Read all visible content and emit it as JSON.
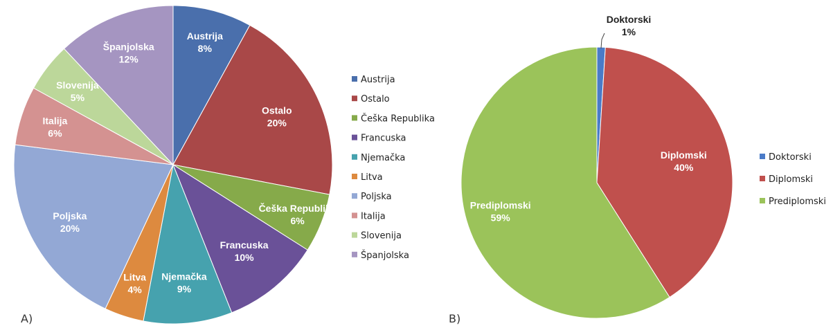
{
  "chart_data": [
    {
      "type": "pie",
      "panel_label": "A)",
      "legend_position": "right",
      "slices": [
        {
          "label": "Austrija",
          "value": 8,
          "value_label": "8%",
          "color": "#4a6fac"
        },
        {
          "label": "Ostalo",
          "value": 20,
          "value_label": "20%",
          "color": "#a94848"
        },
        {
          "label": "Češka Republika",
          "value": 6,
          "value_label": "6%",
          "color": "#86aa4a"
        },
        {
          "label": "Francuska",
          "value": 10,
          "value_label": "10%",
          "color": "#6a5198"
        },
        {
          "label": "Njemačka",
          "value": 9,
          "value_label": "9%",
          "color": "#46a2ae"
        },
        {
          "label": "Litva",
          "value": 4,
          "value_label": "4%",
          "color": "#dd8a3f"
        },
        {
          "label": "Poljska",
          "value": 20,
          "value_label": "20%",
          "color": "#93a8d5"
        },
        {
          "label": "Italija",
          "value": 6,
          "value_label": "6%",
          "color": "#d49291"
        },
        {
          "label": "Slovenija",
          "value": 5,
          "value_label": "5%",
          "color": "#bcd79a"
        },
        {
          "label": "Španjolska",
          "value": 12,
          "value_label": "12%",
          "color": "#a595c1"
        }
      ]
    },
    {
      "type": "pie",
      "panel_label": "B)",
      "legend_position": "right",
      "slices": [
        {
          "label": "Doktorski",
          "value": 1,
          "value_label": "1%",
          "color": "#4a7bc8"
        },
        {
          "label": "Diplomski",
          "value": 40,
          "value_label": "40%",
          "color": "#c0504d"
        },
        {
          "label": "Prediplomski",
          "value": 59,
          "value_label": "59%",
          "color": "#9bc35a"
        }
      ]
    }
  ]
}
